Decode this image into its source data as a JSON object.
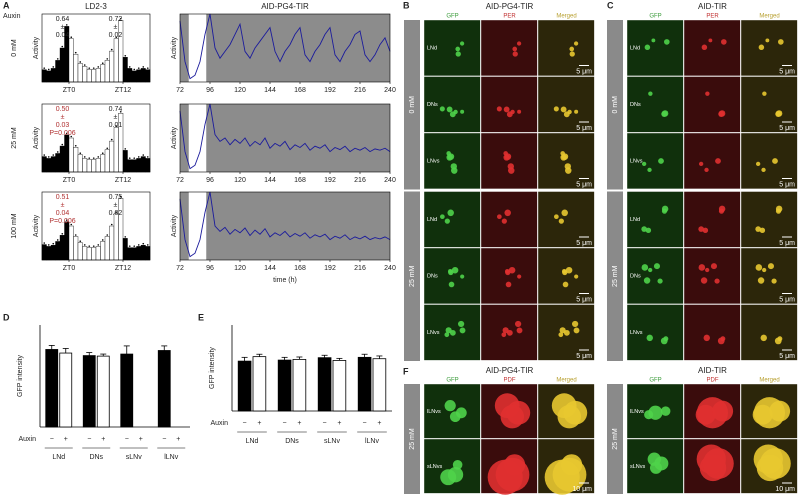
{
  "panel_labels": [
    "A",
    "B",
    "C",
    "D",
    "E",
    "F"
  ],
  "panel_a": {
    "auxin_label": "Auxin",
    "concentrations": [
      "0 mM",
      "25 mM",
      "100 mM"
    ]
  },
  "chart_data": [
    {
      "type": "histogram",
      "title": "LD2-3",
      "y_label": "Activity",
      "bins": [
        -6,
        -5,
        -4,
        -3,
        -2,
        -1,
        0,
        1,
        2,
        3,
        4,
        5,
        6,
        7,
        8,
        9,
        10,
        11,
        12,
        13,
        14,
        15,
        16,
        17,
        18
      ],
      "values": [
        0.2,
        0.18,
        0.22,
        0.35,
        0.55,
        0.9,
        0.7,
        0.45,
        0.3,
        0.25,
        0.2,
        0.2,
        0.22,
        0.28,
        0.35,
        0.5,
        0.7,
        1.0,
        0.4,
        0.22,
        0.18,
        0.2,
        0.22,
        0.2
      ],
      "ylim": [
        0,
        1.1
      ],
      "xticks": [
        {
          "value": 0,
          "label": "ZT0"
        },
        {
          "value": 12,
          "label": "ZT12"
        }
      ],
      "color": "#000000",
      "day_color": "#ffffff",
      "annotations": [
        {
          "lines": [
            "0.64",
            "±",
            "0.04"
          ],
          "color": "#222222"
        },
        {
          "lines": [
            "0.72",
            "±",
            "0.02"
          ],
          "color": "#222222"
        }
      ]
    },
    {
      "type": "histogram",
      "y_label": "Activity",
      "bins": [
        -6,
        -5,
        -4,
        -3,
        -2,
        -1,
        0,
        1,
        2,
        3,
        4,
        5,
        6,
        7,
        8,
        9,
        10,
        11,
        12,
        13,
        14,
        15,
        16,
        17,
        18
      ],
      "values": [
        0.25,
        0.22,
        0.25,
        0.3,
        0.42,
        0.6,
        0.55,
        0.4,
        0.28,
        0.22,
        0.2,
        0.2,
        0.22,
        0.28,
        0.36,
        0.5,
        0.72,
        0.95,
        0.35,
        0.2,
        0.2,
        0.22,
        0.25,
        0.22
      ],
      "ylim": [
        0,
        1.1
      ],
      "xticks": [
        {
          "value": 0,
          "label": "ZT0"
        },
        {
          "value": 12,
          "label": "ZT12"
        }
      ],
      "color": "#000000",
      "day_color": "#ffffff",
      "annotations": [
        {
          "lines": [
            "0.50",
            "±",
            "0.03",
            "P=0.006"
          ],
          "color": "#b03030"
        },
        {
          "lines": [
            "0.74",
            "±",
            "0.01"
          ],
          "color": "#222222"
        }
      ]
    },
    {
      "type": "histogram",
      "y_label": "Activity",
      "bins": [
        -6,
        -5,
        -4,
        -3,
        -2,
        -1,
        0,
        1,
        2,
        3,
        4,
        5,
        6,
        7,
        8,
        9,
        10,
        11,
        12,
        13,
        14,
        15,
        16,
        17,
        18
      ],
      "values": [
        0.25,
        0.22,
        0.24,
        0.3,
        0.4,
        0.62,
        0.55,
        0.38,
        0.28,
        0.22,
        0.2,
        0.2,
        0.22,
        0.3,
        0.38,
        0.55,
        0.75,
        1.0,
        0.35,
        0.2,
        0.2,
        0.22,
        0.24,
        0.22
      ],
      "ylim": [
        0,
        1.1
      ],
      "xticks": [
        {
          "value": 0,
          "label": "ZT0"
        },
        {
          "value": 12,
          "label": "ZT12"
        }
      ],
      "color": "#000000",
      "day_color": "#ffffff",
      "annotations": [
        {
          "lines": [
            "0.51",
            "±",
            "0.04",
            "P=0.006"
          ],
          "color": "#b03030"
        },
        {
          "lines": [
            "0.75",
            "±",
            "0.02"
          ],
          "color": "#222222"
        }
      ]
    },
    {
      "type": "line",
      "title": "AID-PG4-TIR",
      "y_label": "Activity",
      "x": [
        72,
        76,
        80,
        84,
        88,
        92,
        96,
        100,
        104,
        108,
        112,
        116,
        120,
        124,
        128,
        132,
        136,
        140,
        144,
        148,
        152,
        156,
        160,
        164,
        168,
        172,
        176,
        180,
        184,
        188,
        192,
        196,
        200,
        204,
        208,
        212,
        216,
        220,
        224,
        228,
        232,
        236,
        240
      ],
      "values": [
        0.9,
        0.3,
        0.05,
        0.1,
        0.3,
        0.7,
        1.0,
        0.5,
        0.35,
        0.45,
        0.55,
        0.7,
        0.85,
        0.45,
        0.35,
        0.5,
        0.6,
        0.7,
        0.8,
        0.45,
        0.3,
        0.45,
        0.55,
        0.7,
        0.8,
        0.4,
        0.3,
        0.45,
        0.55,
        0.7,
        0.8,
        0.4,
        0.3,
        0.45,
        0.55,
        0.7,
        0.75,
        0.4,
        0.3,
        0.4,
        0.55,
        0.65,
        0.45
      ],
      "color": "#1c1c9c",
      "background": "#8c8c8c",
      "unshaded": [
        79,
        93
      ],
      "xlim": [
        72,
        240
      ],
      "ylim": [
        0,
        1
      ],
      "xticks": [
        72,
        96,
        120,
        144,
        168,
        192,
        216,
        240
      ]
    },
    {
      "type": "line",
      "y_label": "Activity",
      "x": [
        72,
        76,
        80,
        84,
        88,
        92,
        96,
        100,
        104,
        108,
        112,
        116,
        120,
        124,
        128,
        132,
        136,
        140,
        144,
        148,
        152,
        156,
        160,
        164,
        168,
        172,
        176,
        180,
        184,
        188,
        192,
        196,
        200,
        204,
        208,
        212,
        216,
        220,
        224,
        228,
        232,
        236,
        240
      ],
      "values": [
        0.9,
        0.3,
        0.05,
        0.1,
        0.3,
        0.7,
        1.0,
        0.55,
        0.45,
        0.5,
        0.4,
        0.48,
        0.42,
        0.5,
        0.38,
        0.45,
        0.4,
        0.5,
        0.35,
        0.42,
        0.38,
        0.45,
        0.33,
        0.4,
        0.36,
        0.42,
        0.32,
        0.38,
        0.35,
        0.4,
        0.3,
        0.36,
        0.33,
        0.38,
        0.3,
        0.35,
        0.32,
        0.36,
        0.3,
        0.34,
        0.32,
        0.35,
        0.3
      ],
      "color": "#1c1c9c",
      "background": "#8c8c8c",
      "unshaded": [
        79,
        93
      ],
      "xlim": [
        72,
        240
      ],
      "ylim": [
        0,
        1
      ],
      "xticks": [
        72,
        96,
        120,
        144,
        168,
        192,
        216,
        240
      ]
    },
    {
      "type": "line",
      "y_label": "Activity",
      "x_label": "time (h)",
      "x": [
        72,
        76,
        80,
        84,
        88,
        92,
        96,
        100,
        104,
        108,
        112,
        116,
        120,
        124,
        128,
        132,
        136,
        140,
        144,
        148,
        152,
        156,
        160,
        164,
        168,
        172,
        176,
        180,
        184,
        188,
        192,
        196,
        200,
        204,
        208,
        212,
        216,
        220,
        224,
        228,
        232,
        236,
        240
      ],
      "values": [
        0.9,
        0.3,
        0.05,
        0.1,
        0.3,
        0.7,
        1.0,
        0.5,
        0.42,
        0.48,
        0.38,
        0.45,
        0.4,
        0.47,
        0.36,
        0.44,
        0.38,
        0.46,
        0.34,
        0.4,
        0.36,
        0.42,
        0.34,
        0.39,
        0.35,
        0.4,
        0.32,
        0.37,
        0.34,
        0.38,
        0.3,
        0.35,
        0.32,
        0.37,
        0.3,
        0.34,
        0.31,
        0.35,
        0.3,
        0.33,
        0.31,
        0.34,
        0.3
      ],
      "color": "#1c1c9c",
      "background": "#8c8c8c",
      "unshaded": [
        79,
        93
      ],
      "xlim": [
        72,
        240
      ],
      "ylim": [
        0,
        1
      ],
      "xticks": [
        72,
        96,
        120,
        144,
        168,
        192,
        216,
        240
      ]
    },
    {
      "type": "bar",
      "y_label": "GFP intensity",
      "x_label": "Auxin",
      "categories": [
        "LNd",
        "DNs",
        "sLNv",
        "lLNv"
      ],
      "ylim": [
        0,
        2000
      ],
      "series": [
        {
          "name": "−",
          "color": "#000000",
          "values": [
            1520,
            1400,
            1430,
            1500
          ],
          "errors": [
            80,
            60,
            160,
            90
          ]
        },
        {
          "name": "+",
          "color": "#ffffff",
          "values": [
            1450,
            1390,
            null,
            null
          ],
          "errors": [
            90,
            40,
            null,
            null
          ]
        }
      ]
    },
    {
      "type": "bar",
      "y_label": "GFP intensity",
      "x_label": "Auxin",
      "categories": [
        "LNd",
        "DNs",
        "sLNv",
        "lLNv"
      ],
      "ylim": [
        0,
        2500
      ],
      "series": [
        {
          "name": "−",
          "color": "#000000",
          "values": [
            1450,
            1480,
            1550,
            1560
          ],
          "errors": [
            110,
            80,
            70,
            90
          ]
        },
        {
          "name": "+",
          "color": "#ffffff",
          "values": [
            1580,
            1500,
            1470,
            1520
          ],
          "errors": [
            70,
            70,
            60,
            80
          ]
        }
      ]
    }
  ],
  "micrographs": [
    {
      "title": "AID-PG4-TIR",
      "columns": [
        "GFP",
        "PER",
        "Merged"
      ],
      "scale_bar": "5 μm",
      "groups": [
        {
          "label": "0 mM",
          "rows": [
            "LNd",
            "DNs",
            "LNvs"
          ]
        },
        {
          "label": "25 mM",
          "rows": [
            "LNd",
            "DNs",
            "LNvs"
          ]
        }
      ]
    },
    {
      "title": "AID-TIR",
      "columns": [
        "GFP",
        "PER",
        "Merged"
      ],
      "scale_bar": "5 μm",
      "groups": [
        {
          "label": "0 mM",
          "rows": [
            "LNd",
            "DNs",
            "LNvs"
          ]
        },
        {
          "label": "25 mM",
          "rows": [
            "LNd",
            "DNs",
            "LNvs"
          ]
        }
      ]
    },
    {
      "title": "AID-PG4-TIR",
      "columns": [
        "GFP",
        "PDF",
        "Merged"
      ],
      "scale_bar": "10 μm",
      "groups": [
        {
          "label": "25 mM",
          "rows": [
            "lLNvs",
            "sLNvs"
          ]
        }
      ]
    },
    {
      "title": "AID-TIR",
      "columns": [
        "GFP",
        "PDF",
        "Merged"
      ],
      "scale_bar": "10 μm",
      "groups": [
        {
          "label": "25 mM",
          "rows": [
            "lLNvs",
            "sLNvs"
          ]
        }
      ]
    }
  ]
}
